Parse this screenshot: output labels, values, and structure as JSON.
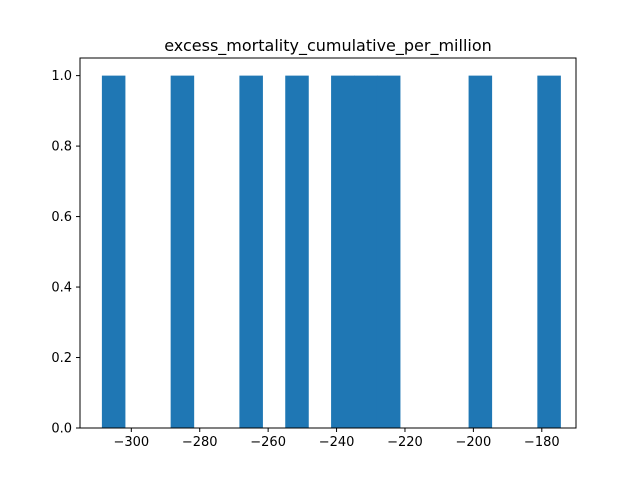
{
  "chart_data": {
    "type": "bar",
    "title": "excess_mortality_cumulative_per_million",
    "xlabel": "",
    "ylabel": "",
    "xlim": [
      -315,
      -170
    ],
    "ylim": [
      0,
      1.05
    ],
    "x_ticks": [
      -300,
      -280,
      -260,
      -240,
      -220,
      -200,
      -180
    ],
    "x_tick_labels": [
      "−300",
      "−280",
      "−260",
      "−240",
      "−220",
      "−200",
      "−180"
    ],
    "y_ticks": [
      0,
      0.2,
      0.4,
      0.6,
      0.8,
      1.0
    ],
    "y_tick_labels": [
      "0.0",
      "0.2",
      "0.4",
      "0.6",
      "0.8",
      "1.0"
    ],
    "bars": [
      {
        "x0": -308.6,
        "x1": -301.9,
        "value": 1
      },
      {
        "x0": -288.5,
        "x1": -281.8,
        "value": 1
      },
      {
        "x0": -268.4,
        "x1": -261.7,
        "value": 1
      },
      {
        "x0": -255.0,
        "x1": -248.3,
        "value": 1
      },
      {
        "x0": -241.6,
        "x1": -234.9,
        "value": 1
      },
      {
        "x0": -234.9,
        "x1": -228.2,
        "value": 1
      },
      {
        "x0": -228.2,
        "x1": -221.5,
        "value": 1
      },
      {
        "x0": -201.4,
        "x1": -194.7,
        "value": 1
      },
      {
        "x0": -181.3,
        "x1": -174.6,
        "value": 1
      }
    ],
    "bar_color": "#1f77b4",
    "grid": false,
    "legend": "none"
  }
}
